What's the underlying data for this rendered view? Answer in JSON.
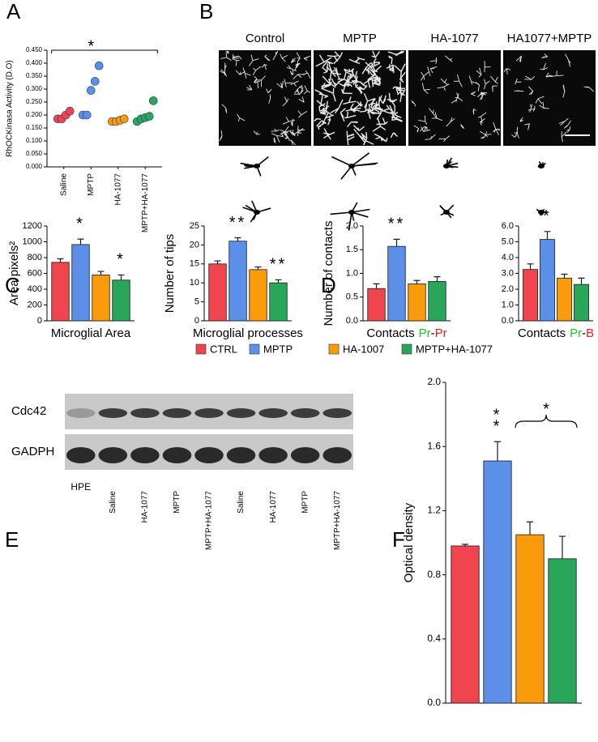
{
  "panel_labels": [
    "A",
    "B",
    "C",
    "D",
    "E",
    "F"
  ],
  "panel_b": {
    "titles": [
      "Control",
      "MPTP",
      "HA-1077",
      "HA1077+MPTP"
    ]
  },
  "legend": [
    {
      "name": "CTRL",
      "color": "#f0454f"
    },
    {
      "name": "MPTP",
      "color": "#5b8fe8"
    },
    {
      "name": "HA-1007",
      "color": "#f99b0a"
    },
    {
      "name": "MPTP+HA-1077",
      "color": "#2aa65a"
    }
  ],
  "panel_e": {
    "row_labels": [
      "Cdc42",
      "GADPH"
    ],
    "lane_labels": [
      "HPE",
      "Saline",
      "HA-1077",
      "MPTP",
      "MPTP+HA-1077",
      "Saline",
      "HA-1077",
      "MPTP",
      "MPTP+HA-1077"
    ]
  },
  "chart_data": [
    {
      "type": "strip",
      "ylabel": "RhOCKinasa Activity (D.O)",
      "categories": [
        "Saline",
        "MPTP",
        "HA-1077",
        "MPTP+HA-1077"
      ],
      "values": [
        [
          0.185,
          0.185,
          0.2,
          0.215
        ],
        [
          0.2,
          0.2,
          0.295,
          0.33,
          0.39
        ],
        [
          0.175,
          0.175,
          0.18,
          0.185
        ],
        [
          0.175,
          0.185,
          0.19,
          0.195,
          0.255
        ]
      ],
      "colors": [
        "#f0454f",
        "#5b8fe8",
        "#f99b0a",
        "#2aa65a"
      ],
      "ylim": [
        0,
        0.45
      ],
      "yticks": [
        {
          "value": 0,
          "label": "0.000"
        },
        {
          "value": 0.05,
          "label": "0.050"
        },
        {
          "value": 0.1,
          "label": "0.100"
        },
        {
          "value": 0.15,
          "label": "0.150"
        },
        {
          "value": 0.2,
          "label": "0.200"
        },
        {
          "value": 0.25,
          "label": "0.250"
        },
        {
          "value": 0.3,
          "label": "0.300"
        },
        {
          "value": 0.35,
          "label": "0.350"
        },
        {
          "value": 0.4,
          "label": "0.400"
        },
        {
          "value": 0.45,
          "label": "0.450"
        }
      ],
      "annotations": [
        {
          "text": "*",
          "from": 0,
          "to": 3
        }
      ]
    },
    {
      "type": "bar",
      "ylabel": "Area pixels²",
      "xlabel": "Microglial Area",
      "values": [
        740,
        965,
        580,
        515
      ],
      "errors": [
        45,
        70,
        45,
        65
      ],
      "colors": [
        "#f0454f",
        "#5b8fe8",
        "#f99b0a",
        "#2aa65a"
      ],
      "ylim": [
        0,
        1200
      ],
      "yticks": [
        0,
        200,
        400,
        600,
        800,
        1000,
        1200
      ],
      "annotations": [
        {
          "text": "*",
          "index": 1
        },
        {
          "text": "*",
          "index": 3
        }
      ]
    },
    {
      "type": "bar",
      "ylabel": "Number of tips",
      "xlabel": "Microglial processes",
      "values": [
        15,
        21,
        13.5,
        10
      ],
      "errors": [
        0.8,
        0.9,
        0.7,
        0.8
      ],
      "colors": [
        "#f0454f",
        "#5b8fe8",
        "#f99b0a",
        "#2aa65a"
      ],
      "ylim": [
        0,
        25
      ],
      "yticks": [
        0,
        5,
        10,
        15,
        20,
        25
      ],
      "annotations": [
        {
          "text": "**",
          "index": 1
        },
        {
          "text": "**",
          "index": 3
        }
      ]
    },
    {
      "type": "bar",
      "ylabel": "Number of contacts",
      "xlabel": [
        "Contacts",
        "Pr",
        "-",
        "Pr"
      ],
      "xlabel_colors": [
        "#000000",
        "#22c322",
        "#000000",
        "#e02020"
      ],
      "values": [
        0.68,
        1.57,
        0.78,
        0.83
      ],
      "errors": [
        0.1,
        0.15,
        0.07,
        0.1
      ],
      "colors": [
        "#f0454f",
        "#5b8fe8",
        "#f99b0a",
        "#2aa65a"
      ],
      "ylim": [
        0,
        2
      ],
      "yticks": [
        {
          "value": 0,
          "label": "0.0"
        },
        {
          "value": 0.5,
          "label": "0.5"
        },
        {
          "value": 1,
          "label": "1.0"
        },
        {
          "value": 1.5,
          "label": "1.5"
        },
        {
          "value": 2,
          "label": "2.0"
        }
      ],
      "annotations": [
        {
          "text": "**",
          "index": 1
        }
      ]
    },
    {
      "type": "bar",
      "xlabel": [
        "Contacts",
        "Pr",
        "-",
        "B"
      ],
      "xlabel_colors": [
        "#000000",
        "#22c322",
        "#000000",
        "#e02020"
      ],
      "values": [
        3.25,
        5.15,
        2.7,
        2.3
      ],
      "errors": [
        0.35,
        0.5,
        0.25,
        0.4
      ],
      "colors": [
        "#f0454f",
        "#5b8fe8",
        "#f99b0a",
        "#2aa65a"
      ],
      "ylim": [
        0,
        6
      ],
      "yticks": [
        {
          "value": 0,
          "label": "0.0"
        },
        {
          "value": 1,
          "label": "1.0"
        },
        {
          "value": 2,
          "label": "2.0"
        },
        {
          "value": 3,
          "label": "3.0"
        },
        {
          "value": 4,
          "label": "4.0"
        },
        {
          "value": 5,
          "label": "5.0"
        },
        {
          "value": 6,
          "label": "6.0"
        }
      ],
      "annotations": [
        {
          "text": "*",
          "index": 1
        }
      ]
    },
    {
      "type": "bar",
      "ylabel": "Optical density",
      "values": [
        0.98,
        1.51,
        1.05,
        0.9
      ],
      "errors": [
        0.01,
        0.12,
        0.08,
        0.14
      ],
      "colors": [
        "#f0454f",
        "#5b8fe8",
        "#f99b0a",
        "#2aa65a"
      ],
      "ylim": [
        0,
        2
      ],
      "yticks": [
        {
          "value": 0,
          "label": "0.0"
        },
        {
          "value": 0.4,
          "label": "0.4"
        },
        {
          "value": 0.8,
          "label": "0.8"
        },
        {
          "value": 1.2,
          "label": "1.2"
        },
        {
          "value": 1.6,
          "label": "1.6"
        },
        {
          "value": 2,
          "label": "2.0"
        }
      ],
      "annotations": [
        {
          "text": "*",
          "index": 1
        },
        {
          "text": "*",
          "index": 1
        },
        {
          "text": "*",
          "from": 2,
          "to": 3
        }
      ]
    }
  ]
}
